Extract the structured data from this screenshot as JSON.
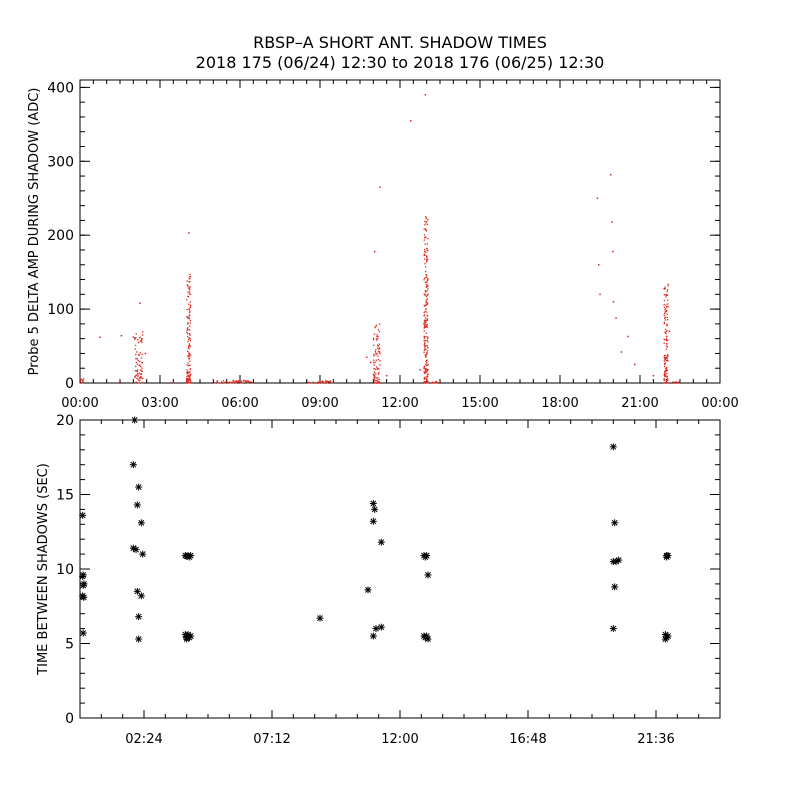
{
  "title": {
    "line1": "RBSP–A SHORT ANT. SHADOW TIMES",
    "line2": "2018 175 (06/24) 12:30 to 2018 176 (06/25) 12:30"
  },
  "colors": {
    "top_marker": "#e0251b",
    "bottom_marker": "#000000",
    "axes": "#000000"
  },
  "chart_data": [
    {
      "type": "scatter",
      "ylabel": "Probe 5 DELTA AMP DURING SHADOW (ADC)",
      "xlabel": "",
      "x_unit": "hours",
      "xlim": [
        0,
        24
      ],
      "ylim": [
        0,
        410
      ],
      "xticks": [
        {
          "v": 0,
          "label": "00:00"
        },
        {
          "v": 3,
          "label": "03:00"
        },
        {
          "v": 6,
          "label": "06:00"
        },
        {
          "v": 9,
          "label": "09:00"
        },
        {
          "v": 12,
          "label": "12:00"
        },
        {
          "v": 15,
          "label": "15:00"
        },
        {
          "v": 18,
          "label": "18:00"
        },
        {
          "v": 21,
          "label": "21:00"
        },
        {
          "v": 24,
          "label": "00:00"
        }
      ],
      "yticks": [
        {
          "v": 0,
          "label": "0"
        },
        {
          "v": 100,
          "label": "100"
        },
        {
          "v": 200,
          "label": "200"
        },
        {
          "v": 300,
          "label": "300"
        },
        {
          "v": 400,
          "label": "400"
        }
      ],
      "marker": "dot",
      "clusters": [
        {
          "x": [
            0.0,
            0.15
          ],
          "y": [
            0,
            8
          ]
        },
        {
          "x": [
            2.05,
            2.35
          ],
          "y": [
            0,
            70
          ]
        },
        {
          "x": [
            4.0,
            4.15
          ],
          "y": [
            0,
            150
          ]
        },
        {
          "x": [
            5.0,
            6.5
          ],
          "y": [
            0,
            4
          ]
        },
        {
          "x": [
            8.5,
            9.5
          ],
          "y": [
            0,
            3
          ]
        },
        {
          "x": [
            11.0,
            11.25
          ],
          "y": [
            0,
            80
          ]
        },
        {
          "x": [
            12.9,
            13.05
          ],
          "y": [
            0,
            230
          ]
        },
        {
          "x": [
            13.2,
            13.4
          ],
          "y": [
            0,
            2
          ]
        },
        {
          "x": [
            21.9,
            22.05
          ],
          "y": [
            0,
            135
          ]
        },
        {
          "x": [
            22.2,
            22.5
          ],
          "y": [
            0,
            2
          ]
        }
      ],
      "points": [
        [
          0.75,
          62
        ],
        [
          1.5,
          2
        ],
        [
          1.55,
          64
        ],
        [
          2.0,
          62
        ],
        [
          2.1,
          33
        ],
        [
          2.2,
          55
        ],
        [
          2.25,
          108
        ],
        [
          2.3,
          12
        ],
        [
          2.45,
          40
        ],
        [
          4.08,
          203
        ],
        [
          3.5,
          1
        ],
        [
          10.75,
          35
        ],
        [
          10.9,
          28
        ],
        [
          11.05,
          178
        ],
        [
          11.25,
          265
        ],
        [
          11.5,
          10
        ],
        [
          12.4,
          355
        ],
        [
          12.95,
          390
        ],
        [
          12.75,
          18
        ],
        [
          13.5,
          2
        ],
        [
          19.4,
          250
        ],
        [
          19.45,
          160
        ],
        [
          19.5,
          120
        ],
        [
          19.9,
          282
        ],
        [
          19.95,
          218
        ],
        [
          19.98,
          178
        ],
        [
          20.0,
          110
        ],
        [
          20.1,
          88
        ],
        [
          20.3,
          42
        ],
        [
          20.55,
          63
        ],
        [
          20.8,
          25
        ],
        [
          21.5,
          10
        ],
        [
          22.1,
          70
        ]
      ]
    },
    {
      "type": "scatter",
      "ylabel": "TIME BETWEEN SHADOWS (SEC)",
      "xlabel": "",
      "x_unit": "hours",
      "xlim": [
        0,
        24
      ],
      "ylim": [
        0,
        20
      ],
      "xticks": [
        {
          "v": 2.4,
          "label": "02:24"
        },
        {
          "v": 7.2,
          "label": "07:12"
        },
        {
          "v": 12,
          "label": "12:00"
        },
        {
          "v": 16.8,
          "label": "16:48"
        },
        {
          "v": 21.6,
          "label": "21:36"
        }
      ],
      "yticks": [
        {
          "v": 0,
          "label": "0"
        },
        {
          "v": 5,
          "label": "5"
        },
        {
          "v": 10,
          "label": "10"
        },
        {
          "v": 15,
          "label": "15"
        },
        {
          "v": 20,
          "label": "20"
        }
      ],
      "marker": "asterisk",
      "points": [
        [
          0.1,
          13.6
        ],
        [
          0.12,
          9.6
        ],
        [
          0.1,
          9.5
        ],
        [
          0.15,
          9.0
        ],
        [
          0.12,
          8.9
        ],
        [
          0.1,
          8.2
        ],
        [
          0.14,
          8.1
        ],
        [
          0.12,
          5.7
        ],
        [
          2.05,
          20.0
        ],
        [
          2.0,
          17.0
        ],
        [
          2.2,
          15.5
        ],
        [
          2.15,
          14.3
        ],
        [
          2.3,
          13.1
        ],
        [
          2.0,
          11.4
        ],
        [
          2.1,
          11.3
        ],
        [
          2.35,
          11.0
        ],
        [
          2.15,
          8.5
        ],
        [
          2.3,
          8.2
        ],
        [
          2.2,
          6.8
        ],
        [
          2.2,
          5.3
        ],
        [
          3.95,
          10.9
        ],
        [
          4.05,
          10.9
        ],
        [
          4.15,
          10.9
        ],
        [
          4.0,
          10.85
        ],
        [
          4.1,
          10.8
        ],
        [
          3.95,
          5.6
        ],
        [
          4.05,
          5.6
        ],
        [
          4.15,
          5.5
        ],
        [
          4.0,
          5.4
        ],
        [
          4.1,
          5.4
        ],
        [
          4.0,
          5.3
        ],
        [
          9.0,
          6.7
        ],
        [
          10.8,
          8.6
        ],
        [
          11.0,
          14.4
        ],
        [
          11.05,
          14.0
        ],
        [
          11.0,
          13.2
        ],
        [
          11.3,
          11.8
        ],
        [
          11.1,
          6.0
        ],
        [
          11.3,
          6.1
        ],
        [
          11.0,
          5.5
        ],
        [
          12.9,
          10.9
        ],
        [
          13.0,
          10.9
        ],
        [
          12.95,
          10.8
        ],
        [
          13.05,
          9.6
        ],
        [
          12.9,
          5.5
        ],
        [
          13.0,
          5.5
        ],
        [
          12.95,
          5.4
        ],
        [
          13.05,
          5.3
        ],
        [
          20.0,
          18.2
        ],
        [
          20.05,
          13.1
        ],
        [
          20.0,
          10.5
        ],
        [
          20.2,
          10.6
        ],
        [
          20.1,
          10.5
        ],
        [
          20.05,
          8.8
        ],
        [
          20.0,
          6.0
        ],
        [
          22.0,
          10.9
        ],
        [
          22.05,
          10.9
        ],
        [
          22.0,
          10.8
        ],
        [
          21.95,
          5.6
        ],
        [
          22.05,
          5.5
        ],
        [
          22.0,
          5.4
        ],
        [
          21.95,
          5.3
        ]
      ]
    }
  ]
}
